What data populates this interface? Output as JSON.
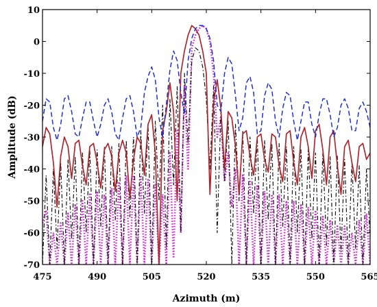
{
  "chart_data": {
    "type": "line",
    "title": "",
    "xlabel": "Azimuth (m)",
    "ylabel": "Amplitude (dB)",
    "xlim": [
      475,
      565
    ],
    "ylim": [
      -70,
      10
    ],
    "xticks": [
      475,
      490,
      505,
      520,
      535,
      550,
      565
    ],
    "yticks": [
      -70,
      -60,
      -50,
      -40,
      -30,
      -20,
      -10,
      0,
      10
    ],
    "grid": false,
    "legend": "none",
    "series": [
      {
        "style": "dashed",
        "color": "#1f2fd6",
        "x": [
          475,
          476,
          477,
          478,
          479,
          480,
          481,
          482,
          483,
          484,
          485,
          486,
          487,
          488,
          489,
          490,
          491,
          492,
          493,
          494,
          495,
          496,
          497,
          498,
          499,
          500,
          501,
          502,
          503,
          504,
          505,
          506,
          507,
          508,
          509,
          510,
          511,
          512,
          513,
          514,
          515,
          516,
          517,
          518,
          519,
          520,
          521,
          522,
          523,
          524,
          525,
          526,
          527,
          528,
          529,
          530,
          531,
          532,
          533,
          534,
          535,
          536,
          537,
          538,
          539,
          540,
          541,
          542,
          543,
          544,
          545,
          546,
          547,
          548,
          549,
          550,
          551,
          552,
          553,
          554,
          555,
          556,
          557,
          558,
          559,
          560,
          561,
          562,
          563,
          564,
          565
        ],
        "y": [
          -25,
          -18,
          -19,
          -27,
          -31,
          -26,
          -18,
          -17,
          -22,
          -29,
          -30,
          -24,
          -19,
          -19,
          -25,
          -30,
          -26,
          -20,
          -18,
          -22,
          -29,
          -31,
          -24,
          -18,
          -17,
          -22,
          -30,
          -27,
          -16,
          -11,
          -8,
          -12,
          -24,
          -30,
          -20,
          -9,
          -3,
          -6,
          -16,
          -23,
          -6,
          1,
          4,
          5,
          5,
          4,
          1,
          -6,
          -20,
          -22,
          -10,
          -5,
          -7,
          -17,
          -28,
          -24,
          -13,
          -11,
          -16,
          -29,
          -28,
          -17,
          -13,
          -15,
          -25,
          -30,
          -21,
          -16,
          -17,
          -25,
          -31,
          -25,
          -19,
          -19,
          -26,
          -30,
          -23,
          -18,
          -18,
          -23,
          -30,
          -27,
          -20,
          -18,
          -21,
          -28,
          -28,
          -21,
          -19,
          -22,
          -27
        ]
      },
      {
        "style": "solid",
        "color": "#b0252c",
        "x": [
          475,
          476,
          477,
          478,
          479,
          480,
          481,
          482,
          483,
          484,
          485,
          486,
          487,
          488,
          489,
          490,
          491,
          492,
          493,
          494,
          495,
          496,
          497,
          498,
          499,
          500,
          501,
          502,
          503,
          504,
          505,
          506,
          507,
          508,
          509,
          510,
          511,
          512,
          513,
          514,
          515,
          516,
          517,
          518,
          519,
          520,
          521,
          522,
          523,
          524,
          525,
          526,
          527,
          528,
          529,
          530,
          531,
          532,
          533,
          534,
          535,
          536,
          537,
          538,
          539,
          540,
          541,
          542,
          543,
          544,
          545,
          546,
          547,
          548,
          549,
          550,
          551,
          552,
          553,
          554,
          555,
          556,
          557,
          558,
          559,
          560,
          561,
          562,
          563,
          564,
          565
        ],
        "y": [
          -33,
          -27,
          -29,
          -38,
          -52,
          -36,
          -30,
          -33,
          -43,
          -32,
          -31,
          -39,
          -45,
          -33,
          -32,
          -38,
          -46,
          -34,
          -32,
          -36,
          -47,
          -35,
          -31,
          -35,
          -49,
          -37,
          -30,
          -32,
          -42,
          -26,
          -23,
          -35,
          -70,
          -28,
          -22,
          -13,
          -22,
          -50,
          -10,
          -3,
          2,
          5,
          4,
          2,
          -3,
          -10,
          -48,
          -19,
          -12,
          -21,
          -40,
          -22,
          -24,
          -33,
          -48,
          -29,
          -28,
          -36,
          -42,
          -30,
          -29,
          -37,
          -41,
          -29,
          -30,
          -39,
          -44,
          -29,
          -28,
          -38,
          -45,
          -30,
          -27,
          -33,
          -43,
          -28,
          -26,
          -34,
          -45,
          -30,
          -28,
          -39,
          -48,
          -33,
          -31,
          -38,
          -44,
          -33,
          -32,
          -37,
          -35
        ]
      },
      {
        "style": "dash-dot",
        "color": "#111111",
        "x": [
          475,
          476,
          477,
          478,
          479,
          480,
          481,
          482,
          483,
          484,
          485,
          486,
          487,
          488,
          489,
          490,
          491,
          492,
          493,
          494,
          495,
          496,
          497,
          498,
          499,
          500,
          501,
          502,
          503,
          504,
          505,
          506,
          507,
          508,
          509,
          510,
          511,
          512,
          513,
          514,
          515,
          516,
          517,
          518,
          519,
          520,
          521,
          522,
          523,
          524,
          525,
          526,
          527,
          528,
          529,
          530,
          531,
          532,
          533,
          534,
          535,
          536,
          537,
          538,
          539,
          540,
          541,
          542,
          543,
          544,
          545,
          546,
          547,
          548,
          549,
          550,
          551,
          552,
          553,
          554,
          555,
          556,
          557,
          558,
          559,
          560,
          561,
          562,
          563,
          564,
          565
        ],
        "y": [
          -70,
          -42,
          -70,
          -40,
          -65,
          -38,
          -70,
          -37,
          -62,
          -36,
          -70,
          -35,
          -60,
          -34,
          -70,
          -34,
          -58,
          -33,
          -70,
          -33,
          -56,
          -32,
          -70,
          -31,
          -55,
          -30,
          -70,
          -28,
          -54,
          -26,
          -70,
          -25,
          -50,
          -20,
          -65,
          -18,
          -45,
          -14,
          -60,
          -10,
          -32,
          -6,
          -2,
          -3,
          -8,
          -18,
          -40,
          -14,
          -60,
          -22,
          -44,
          -25,
          -70,
          -26,
          -50,
          -28,
          -70,
          -30,
          -54,
          -30,
          -70,
          -31,
          -56,
          -32,
          -70,
          -32,
          -58,
          -33,
          -70,
          -33,
          -60,
          -34,
          -70,
          -34,
          -62,
          -35,
          -70,
          -35,
          -64,
          -36,
          -70,
          -36,
          -66,
          -37,
          -70,
          -38,
          -65,
          -39,
          -70,
          -40,
          -62
        ]
      },
      {
        "style": "dotted",
        "color": "#d21fd2",
        "x": [
          475,
          476,
          477,
          478,
          479,
          480,
          481,
          482,
          483,
          484,
          485,
          486,
          487,
          488,
          489,
          490,
          491,
          492,
          493,
          494,
          495,
          496,
          497,
          498,
          499,
          500,
          501,
          502,
          503,
          504,
          505,
          506,
          507,
          508,
          509,
          510,
          511,
          512,
          513,
          514,
          515,
          516,
          517,
          518,
          519,
          520,
          521,
          522,
          523,
          524,
          525,
          526,
          527,
          528,
          529,
          530,
          531,
          532,
          533,
          534,
          535,
          536,
          537,
          538,
          539,
          540,
          541,
          542,
          543,
          544,
          545,
          546,
          547,
          548,
          549,
          550,
          551,
          552,
          553,
          554,
          555,
          556,
          557,
          558,
          559,
          560,
          561,
          562,
          563,
          564,
          565
        ],
        "y": [
          -57,
          -53,
          -70,
          -60,
          -70,
          -57,
          -70,
          -54,
          -70,
          -51,
          -70,
          -50,
          -70,
          -48,
          -70,
          -47,
          -70,
          -48,
          -70,
          -46,
          -70,
          -44,
          -70,
          -42,
          -70,
          -42,
          -70,
          -42,
          -70,
          -43,
          -70,
          -45,
          -70,
          -48,
          -70,
          -35,
          -68,
          -28,
          -60,
          -14,
          -40,
          -2,
          2,
          4,
          5,
          4,
          0,
          -10,
          -30,
          -24,
          -44,
          -35,
          -52,
          -40,
          -70,
          -42,
          -70,
          -44,
          -70,
          -45,
          -70,
          -47,
          -70,
          -48,
          -70,
          -48,
          -70,
          -50,
          -70,
          -50,
          -70,
          -51,
          -70,
          -52,
          -70,
          -53,
          -70,
          -55,
          -70,
          -56,
          -70,
          -58,
          -70,
          -58,
          -70,
          -60,
          -70,
          -56,
          -70,
          -54,
          -70
        ]
      }
    ]
  }
}
